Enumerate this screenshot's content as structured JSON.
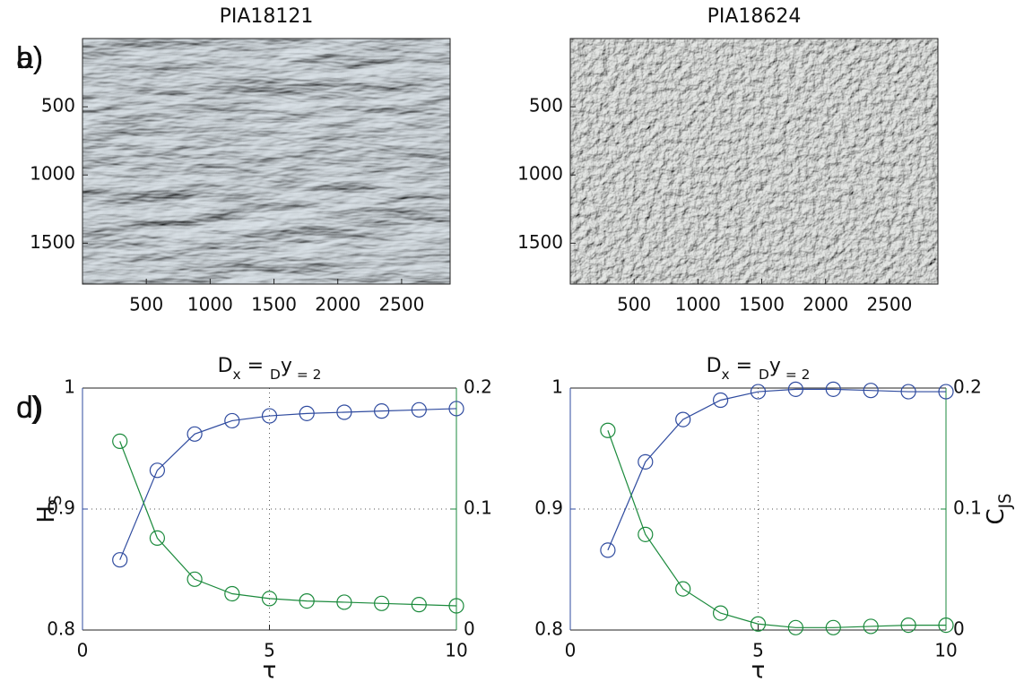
{
  "chart_data": [
    {
      "type": "image",
      "panel": "a)",
      "title": "PIA18121",
      "xlim": [
        0,
        2880
      ],
      "xticks": [
        500,
        1000,
        1500,
        2000,
        2500
      ],
      "ylim": [
        1800,
        0
      ],
      "yticks": [
        500,
        1000,
        1500
      ]
    },
    {
      "type": "image",
      "panel": "b)",
      "title": "PIA18624",
      "xlim": [
        0,
        2880
      ],
      "xticks": [
        500,
        1000,
        1500,
        2000,
        2500
      ],
      "ylim": [
        1800,
        0
      ],
      "yticks": [
        500,
        1000,
        1500
      ]
    },
    {
      "type": "line",
      "panel": "c)",
      "title": [
        "D",
        "x",
        " = ",
        "D",
        "y",
        " = 2"
      ],
      "xlabel": "τ",
      "ylabel": [
        "H",
        "S"
      ],
      "x": [
        1,
        2,
        3,
        4,
        5,
        6,
        7,
        8,
        9,
        10
      ],
      "xlim": [
        0,
        10
      ],
      "xticks": [
        0,
        5,
        10
      ],
      "ylim": [
        0.8,
        1
      ],
      "yticks": [
        0.8,
        0.9,
        1
      ],
      "y2lim": [
        0,
        0.2
      ],
      "y2ticks": [
        0,
        0.1,
        0.2
      ],
      "grid": true,
      "series": [
        {
          "color": "#2f4b9f",
          "values": [
            0.858,
            0.932,
            0.962,
            0.973,
            0.977,
            0.979,
            0.98,
            0.981,
            0.982,
            0.983
          ]
        },
        {
          "color": "#1b8a3c",
          "axis": "y2",
          "values": [
            0.156,
            0.076,
            0.042,
            0.03,
            0.026,
            0.024,
            0.023,
            0.022,
            0.021,
            0.02
          ]
        }
      ]
    },
    {
      "type": "line",
      "panel": "d)",
      "title": [
        "D",
        "x",
        " = ",
        "D",
        "y",
        " = 2"
      ],
      "xlabel": "τ",
      "y2label": [
        "C",
        "JS"
      ],
      "x": [
        1,
        2,
        3,
        4,
        5,
        6,
        7,
        8,
        9,
        10
      ],
      "xlim": [
        0,
        10
      ],
      "xticks": [
        0,
        5,
        10
      ],
      "ylim": [
        0.8,
        1
      ],
      "yticks": [
        0.8,
        0.9,
        1
      ],
      "y2lim": [
        0,
        0.2
      ],
      "y2ticks": [
        0,
        0.1,
        0.2
      ],
      "grid": true,
      "series": [
        {
          "color": "#2f4b9f",
          "values": [
            0.866,
            0.939,
            0.974,
            0.99,
            0.997,
            0.999,
            0.999,
            0.998,
            0.997,
            0.997
          ]
        },
        {
          "color": "#1b8a3c",
          "axis": "y2",
          "values": [
            0.165,
            0.079,
            0.034,
            0.014,
            0.005,
            0.002,
            0.002,
            0.003,
            0.004,
            0.004
          ]
        }
      ]
    }
  ]
}
